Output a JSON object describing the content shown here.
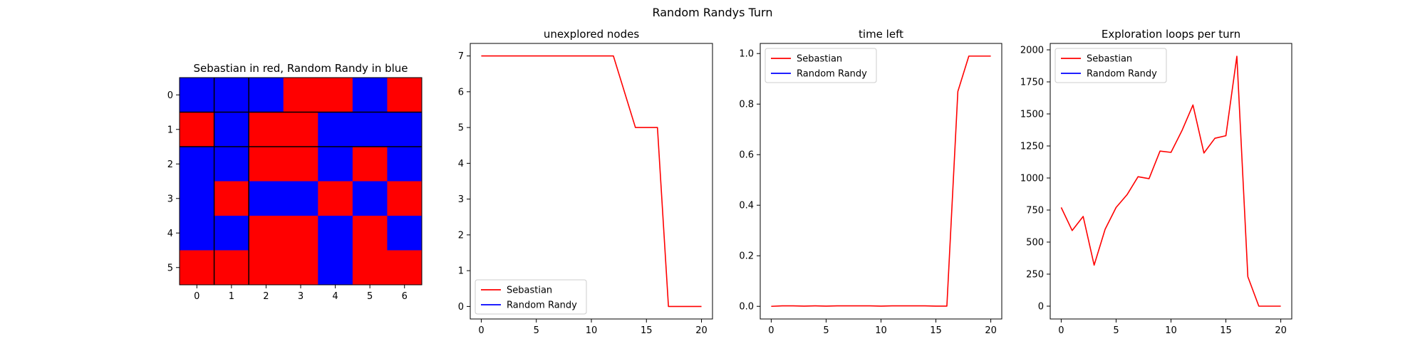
{
  "figure": {
    "suptitle": "Random Randys Turn"
  },
  "colors": {
    "player1": "#ff0000",
    "player2": "#0000ff",
    "axis": "#000000",
    "legend_border": "#cccccc"
  },
  "chart_data": [
    {
      "type": "heatmap",
      "title": "Sebastian in red, Random Randy in blue",
      "x_ticks": [
        "0",
        "1",
        "2",
        "3",
        "4",
        "5",
        "6"
      ],
      "y_ticks": [
        "0",
        "1",
        "2",
        "3",
        "4",
        "5"
      ],
      "value_colors": {
        "1": "#ff0000",
        "2": "#0000ff"
      },
      "grid": [
        [
          2,
          2,
          2,
          1,
          1,
          2,
          1
        ],
        [
          1,
          2,
          1,
          1,
          2,
          2,
          2
        ],
        [
          2,
          2,
          1,
          1,
          2,
          1,
          2
        ],
        [
          2,
          1,
          2,
          2,
          1,
          2,
          1
        ],
        [
          2,
          2,
          1,
          1,
          2,
          1,
          2
        ],
        [
          1,
          1,
          1,
          1,
          2,
          1,
          1
        ]
      ],
      "divider_columns_after": [
        0,
        1
      ],
      "divider_rows_after": [
        0,
        1
      ]
    },
    {
      "type": "line",
      "title": "unexplored nodes",
      "xlim": [
        -1,
        21
      ],
      "ylim": [
        -0.35,
        7.35
      ],
      "x_ticks": [
        0,
        5,
        10,
        15,
        20
      ],
      "y_ticks": [
        0,
        1,
        2,
        3,
        4,
        5,
        6,
        7
      ],
      "legend_position": "lower-left",
      "series": [
        {
          "name": "Sebastian",
          "color": "#ff0000",
          "x": [
            0,
            1,
            2,
            3,
            4,
            5,
            6,
            7,
            8,
            9,
            10,
            11,
            12,
            13,
            14,
            15,
            16,
            17,
            18,
            19,
            20
          ],
          "y": [
            7,
            7,
            7,
            7,
            7,
            7,
            7,
            7,
            7,
            7,
            7,
            7,
            7,
            6,
            5,
            5,
            5,
            0,
            0,
            0,
            0
          ]
        },
        {
          "name": "Random Randy",
          "color": "#0000ff",
          "x": [],
          "y": []
        }
      ]
    },
    {
      "type": "line",
      "title": "time left",
      "xlim": [
        -1,
        21
      ],
      "ylim": [
        -0.05,
        1.04
      ],
      "x_ticks": [
        0,
        5,
        10,
        15,
        20
      ],
      "y_ticks": [
        0.0,
        0.2,
        0.4,
        0.6,
        0.8,
        1.0
      ],
      "y_tick_labels": [
        "0.0",
        "0.2",
        "0.4",
        "0.6",
        "0.8",
        "1.0"
      ],
      "legend_position": "upper-left",
      "series": [
        {
          "name": "Sebastian",
          "color": "#ff0000",
          "x": [
            0,
            1,
            2,
            3,
            4,
            5,
            6,
            7,
            8,
            9,
            10,
            11,
            12,
            13,
            14,
            15,
            16,
            17,
            18,
            19,
            20
          ],
          "y": [
            0,
            0.002,
            0.002,
            0.001,
            0.002,
            0.001,
            0.002,
            0.002,
            0.002,
            0.002,
            0.001,
            0.002,
            0.002,
            0.002,
            0.002,
            0.001,
            0.001,
            0.85,
            0.99,
            0.99,
            0.99
          ]
        },
        {
          "name": "Random Randy",
          "color": "#0000ff",
          "x": [],
          "y": []
        }
      ]
    },
    {
      "type": "line",
      "title": "Exploration loops per turn",
      "xlim": [
        -1,
        21
      ],
      "ylim": [
        -100,
        2050
      ],
      "x_ticks": [
        0,
        5,
        10,
        15,
        20
      ],
      "y_ticks": [
        0,
        250,
        500,
        750,
        1000,
        1250,
        1500,
        1750,
        2000
      ],
      "legend_position": "upper-left",
      "series": [
        {
          "name": "Sebastian",
          "color": "#ff0000",
          "x": [
            0,
            1,
            2,
            3,
            4,
            5,
            6,
            7,
            8,
            9,
            10,
            11,
            12,
            13,
            14,
            15,
            16,
            17,
            18,
            19,
            20
          ],
          "y": [
            770,
            590,
            700,
            320,
            600,
            770,
            870,
            1010,
            995,
            1210,
            1200,
            1370,
            1570,
            1195,
            1310,
            1330,
            1950,
            230,
            0,
            0,
            0
          ]
        },
        {
          "name": "Random Randy",
          "color": "#0000ff",
          "x": [],
          "y": []
        }
      ]
    }
  ]
}
